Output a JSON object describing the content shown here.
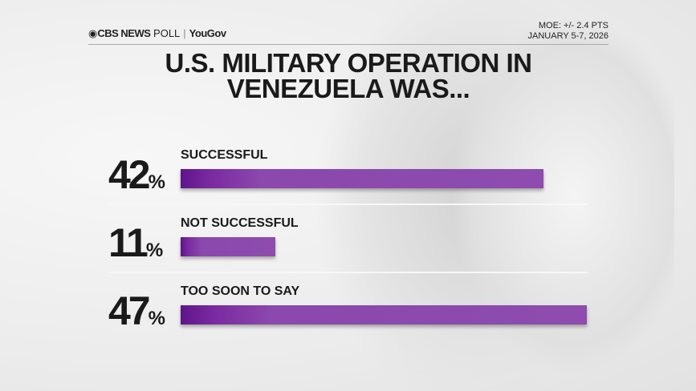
{
  "header": {
    "brand": "CBS NEWS",
    "brand_suffix": "POLL",
    "partner": "YouGov",
    "moe": "MOE: +/- 2.4 PTS",
    "dates": "JANUARY 5-7, 2026"
  },
  "chart_data": {
    "type": "bar",
    "orientation": "horizontal",
    "title": "U.S. MILITARY OPERATION IN VENEZUELA WAS...",
    "categories": [
      "SUCCESSFUL",
      "NOT SUCCESSFUL",
      "TOO SOON TO SAY"
    ],
    "values": [
      42,
      11,
      47
    ],
    "value_labels": [
      "42",
      "11",
      "47"
    ],
    "unit": "%",
    "bar_color": "#8d4cae"
  }
}
